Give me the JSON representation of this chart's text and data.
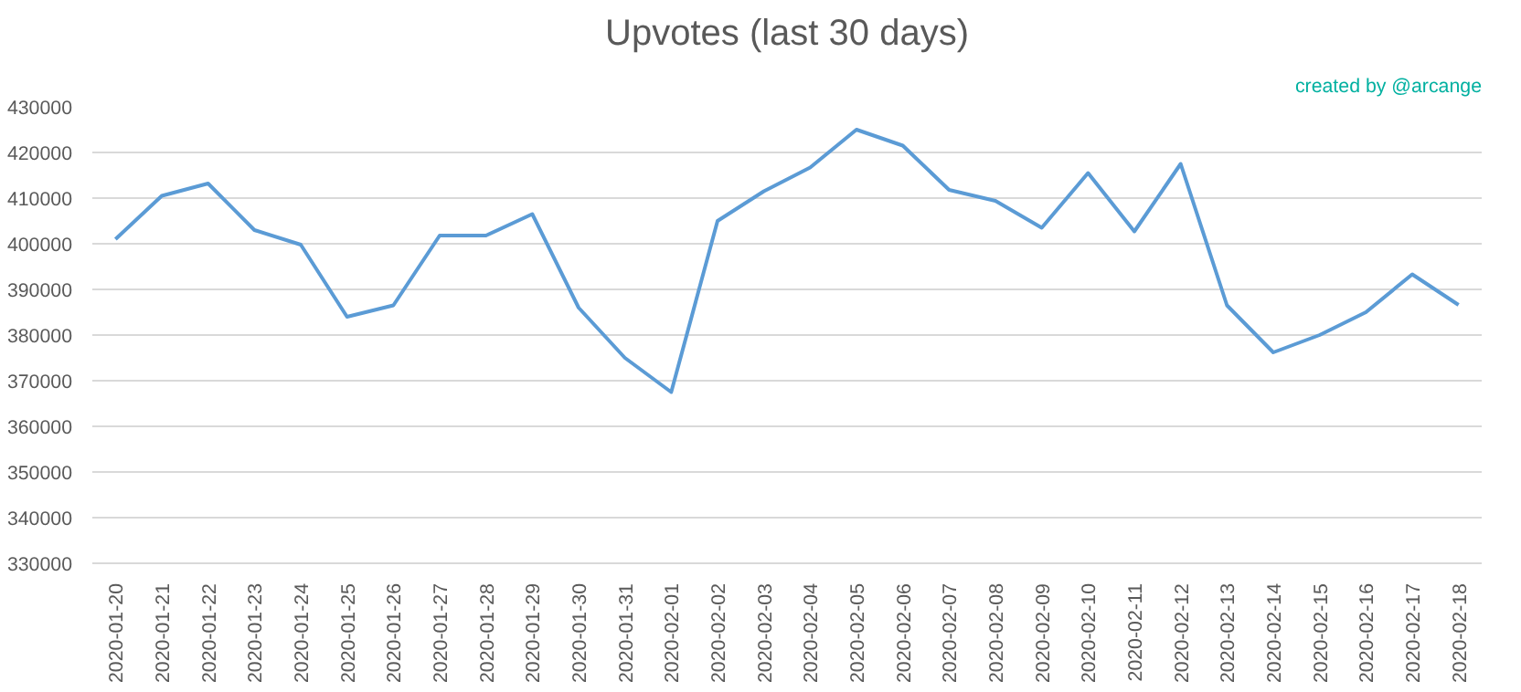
{
  "chart_data": {
    "type": "line",
    "title": "Upvotes (last 30 days)",
    "annotations": [
      "created by @arcange"
    ],
    "categories": [
      "2020-01-20",
      "2020-01-21",
      "2020-01-22",
      "2020-01-23",
      "2020-01-24",
      "2020-01-25",
      "2020-01-26",
      "2020-01-27",
      "2020-01-28",
      "2020-01-29",
      "2020-01-30",
      "2020-01-31",
      "2020-02-01",
      "2020-02-02",
      "2020-02-03",
      "2020-02-04",
      "2020-02-05",
      "2020-02-06",
      "2020-02-07",
      "2020-02-08",
      "2020-02-09",
      "2020-02-10",
      "2020-02-11",
      "2020-02-12",
      "2020-02-13",
      "2020-02-14",
      "2020-02-15",
      "2020-02-16",
      "2020-02-17",
      "2020-02-18"
    ],
    "series": [
      {
        "color": "#5b9bd5",
        "values": [
          401000,
          410500,
          413200,
          403000,
          399800,
          384000,
          386500,
          401800,
          401800,
          406500,
          386000,
          375000,
          367500,
          405000,
          411500,
          416700,
          425000,
          421500,
          411800,
          409400,
          403500,
          415500,
          402700,
          417500,
          386500,
          376200,
          380000,
          385000,
          393300,
          386600
        ]
      }
    ],
    "ylim": [
      330000,
      430000
    ],
    "yticks": [
      330000,
      340000,
      350000,
      360000,
      370000,
      380000,
      390000,
      400000,
      410000,
      420000,
      430000
    ],
    "grid": "y",
    "marker": "none",
    "line_style": "solid"
  }
}
